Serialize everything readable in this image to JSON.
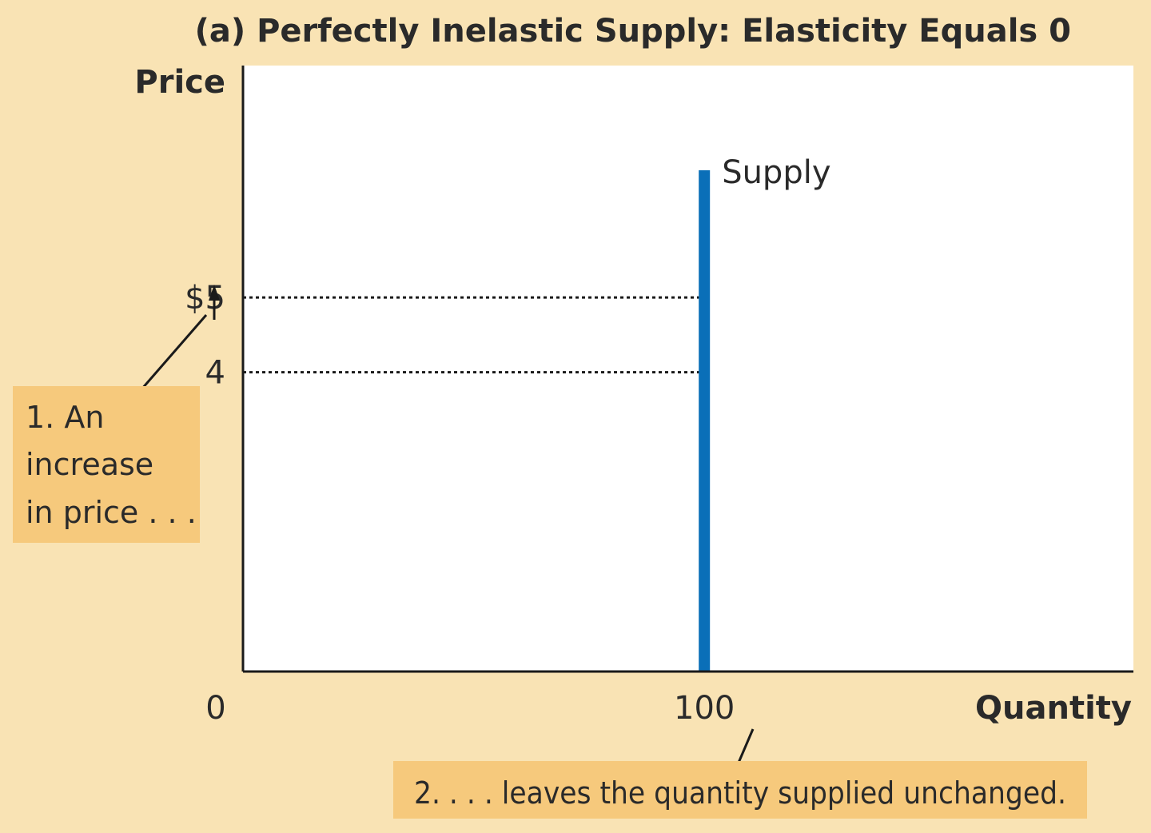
{
  "chart_data": {
    "type": "line",
    "title": "(a) Perfectly Inelastic Supply: Elasticity Equals 0",
    "xlabel": "Quantity",
    "ylabel": "Price",
    "xlim": [
      0,
      193
    ],
    "ylim": [
      0,
      8.1
    ],
    "grid": false,
    "x_ticks": [
      {
        "value": 0,
        "label": "0"
      },
      {
        "value": 100,
        "label": "100"
      }
    ],
    "y_ticks": [
      {
        "value": 4,
        "label": "4"
      },
      {
        "value": 5,
        "label": "$5"
      }
    ],
    "series": [
      {
        "name": "Supply",
        "color": "#0a6fb8",
        "points": [
          {
            "x": 100,
            "y": 0
          },
          {
            "x": 100,
            "y": 6.7
          }
        ]
      }
    ],
    "reference_lines": [
      {
        "price": 5,
        "from_quantity": 0,
        "to_quantity": 100,
        "style": "dotted"
      },
      {
        "price": 4,
        "from_quantity": 0,
        "to_quantity": 100,
        "style": "dotted"
      }
    ],
    "annotations": [
      {
        "id": "note1",
        "lines": [
          "1. An",
          "increase",
          "in price . . ."
        ]
      },
      {
        "id": "note2",
        "lines": [
          "2. . . . leaves the quantity supplied unchanged."
        ]
      }
    ],
    "colors": {
      "background": "#f9e3b4",
      "plot_area": "#ffffff",
      "note_box": "#f6c97c",
      "supply": "#0a6fb8"
    }
  }
}
